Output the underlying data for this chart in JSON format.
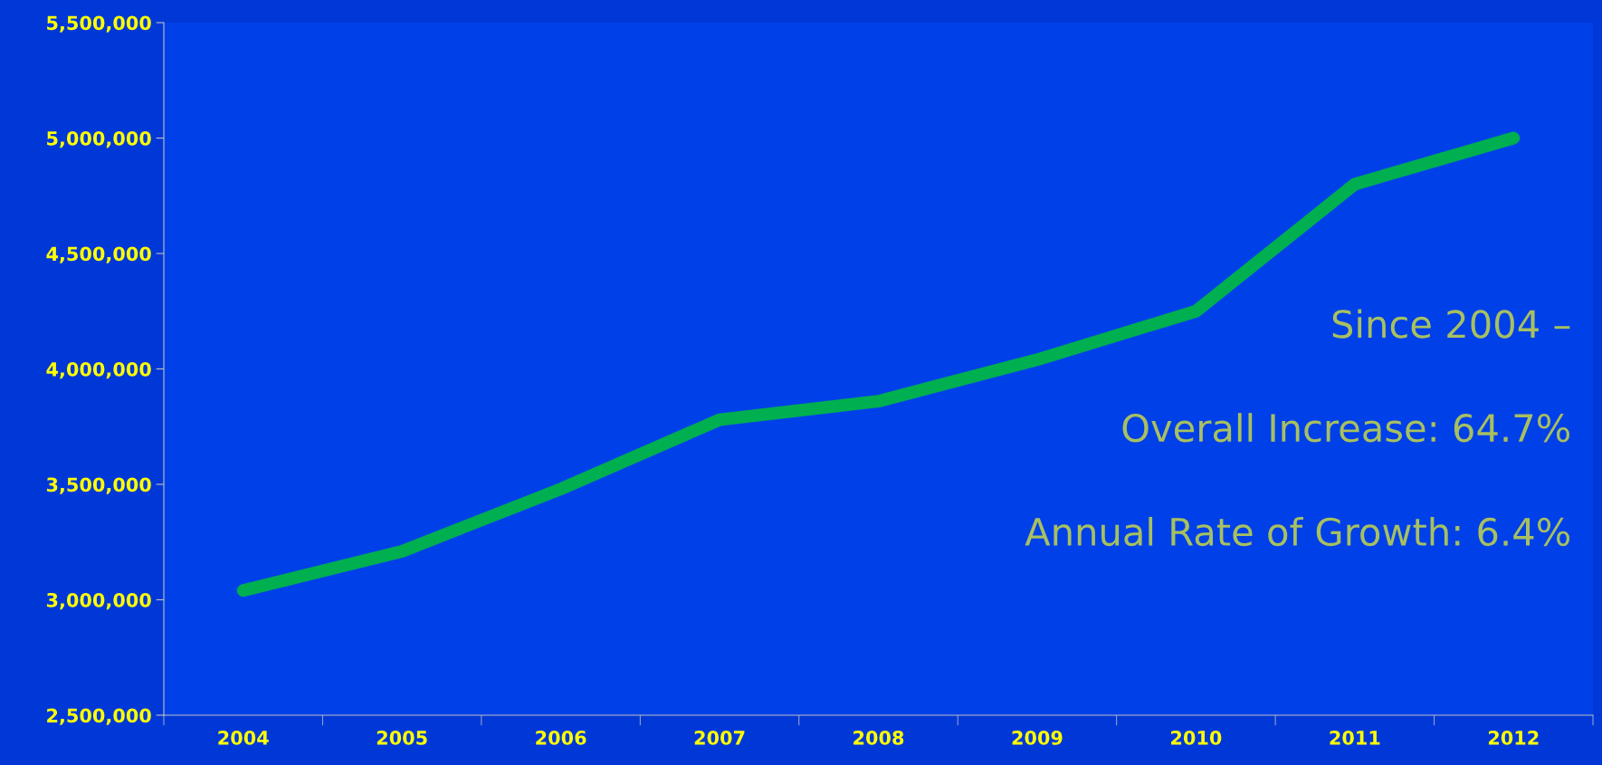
{
  "chart_data": {
    "type": "line",
    "categories": [
      "2004",
      "2005",
      "2006",
      "2007",
      "2008",
      "2009",
      "2010",
      "2011",
      "2012"
    ],
    "series": [
      {
        "color": "#00b050",
        "values": [
          3040000,
          3210000,
          3480000,
          3780000,
          3860000,
          4040000,
          4250000,
          4800000,
          5000000
        ]
      }
    ],
    "ylim": [
      2500000,
      5500000
    ],
    "yticks": [
      {
        "value": 2500000,
        "label": "2,500,000"
      },
      {
        "value": 3000000,
        "label": "3,000,000"
      },
      {
        "value": 3500000,
        "label": "3,500,000"
      },
      {
        "value": 4000000,
        "label": "4,000,000"
      },
      {
        "value": 4500000,
        "label": "4,500,000"
      },
      {
        "value": 5000000,
        "label": "5,000,000"
      },
      {
        "value": 5500000,
        "label": "5,500,000"
      }
    ],
    "annotations": [
      "Since 2004 –",
      "Overall Increase: 64.7%",
      "Annual Rate of Growth: 6.4%"
    ],
    "grid": false,
    "legend": false,
    "line_style": "solid"
  }
}
